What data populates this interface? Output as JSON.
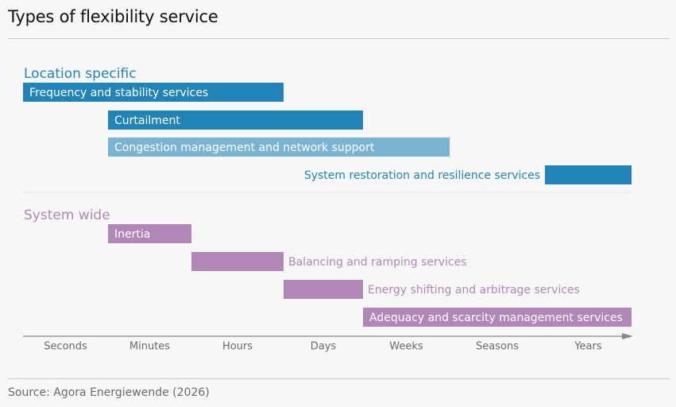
{
  "header": {
    "title": "Types of flexibility service"
  },
  "footer": {
    "source": "Source: Agora Energiewende (2026)"
  },
  "colors": {
    "location_dark": "#2284b6",
    "location_light": "#7ab4d2",
    "system": "#b187b8",
    "group_location": "#2284b6",
    "group_system": "#b187b8",
    "axis": "#888888",
    "tick_text": "#6b6b6b"
  },
  "chart_data": {
    "type": "gantt",
    "x_categories": [
      "Seconds",
      "Minutes",
      "Hours",
      "Days",
      "Weeks",
      "Seasons",
      "Years"
    ],
    "groups": [
      {
        "name": "Location specific",
        "color": "#2284b6",
        "bars": [
          {
            "label": "Frequency and stability services",
            "start": 0,
            "end": 3,
            "color": "#2284b6",
            "label_inside": true
          },
          {
            "label": "Curtailment",
            "start": 1,
            "end": 4,
            "color": "#2284b6",
            "label_inside": true
          },
          {
            "label": "Congestion management and network support",
            "start": 1,
            "end": 5,
            "color": "#7ab4d2",
            "label_inside": true
          },
          {
            "label": "System restoration and resilience services",
            "start": 6,
            "end": 7,
            "color": "#2284b6",
            "label_inside": false,
            "label_side": "left"
          }
        ]
      },
      {
        "name": "System wide",
        "color": "#b187b8",
        "bars": [
          {
            "label": "Inertia",
            "start": 1,
            "end": 2,
            "color": "#b187b8",
            "label_inside": true
          },
          {
            "label": "Balancing and ramping services",
            "start": 2,
            "end": 3,
            "color": "#b187b8",
            "label_inside": false,
            "label_side": "right"
          },
          {
            "label": "Energy shifting and arbitrage services",
            "start": 3,
            "end": 4,
            "color": "#b187b8",
            "label_inside": false,
            "label_side": "right"
          },
          {
            "label": "Adequacy and scarcity management services",
            "start": 4,
            "end": 7,
            "color": "#b187b8",
            "label_inside": true
          }
        ]
      }
    ]
  }
}
